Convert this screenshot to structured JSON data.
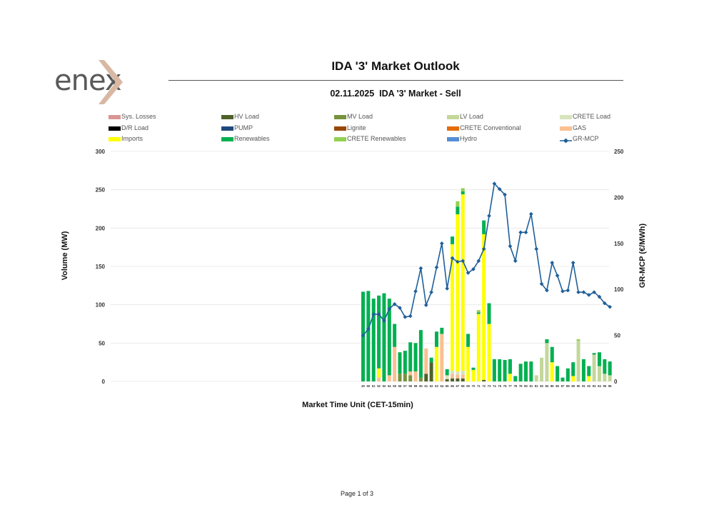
{
  "header": {
    "logo_text": "enex",
    "title": "IDA '3' Market Outlook",
    "subtitle": "02.11.2025  IDA '3' Market - Sell"
  },
  "legend": [
    {
      "label": "Sys. Losses",
      "color": "#d99694"
    },
    {
      "label": "HV Load",
      "color": "#4f6228"
    },
    {
      "label": "MV Load",
      "color": "#77933c"
    },
    {
      "label": "LV Load",
      "color": "#c4d79b"
    },
    {
      "label": "CRETE Load",
      "color": "#d8e4bc"
    },
    {
      "label": "D/R Load",
      "color": "#000000"
    },
    {
      "label": "PUMP",
      "color": "#1f497d"
    },
    {
      "label": "Lignite",
      "color": "#974706"
    },
    {
      "label": "CRETE Conventional",
      "color": "#e46c0a"
    },
    {
      "label": "GAS",
      "color": "#fac090"
    },
    {
      "label": "Imports",
      "color": "#ffff00"
    },
    {
      "label": "Renewables",
      "color": "#00b050"
    },
    {
      "label": "CRETE Renewables",
      "color": "#92d050"
    },
    {
      "label": "Hydro",
      "color": "#558ed5"
    },
    {
      "label": "GR-MCP",
      "color": "#1f5f99"
    }
  ],
  "footer": {
    "page": "Page 1 of 3"
  },
  "chart_data": {
    "type": "bar",
    "stacked": true,
    "title": "02.11.2025  IDA '3' Market - Sell",
    "xlabel": "Market Time Unit (CET-15min)",
    "ylabel": "Volume (MW)",
    "y2label": "GR-MCP (€/MWh)",
    "ylim": [
      0,
      300
    ],
    "yticks": [
      0,
      50,
      100,
      150,
      200,
      250,
      300
    ],
    "y2lim": [
      0,
      250
    ],
    "y2ticks": [
      0,
      50,
      100,
      150,
      200,
      250
    ],
    "grid": true,
    "legend_position": "top",
    "categories": [
      "49",
      "50",
      "51",
      "52",
      "53",
      "54",
      "55",
      "56",
      "57",
      "58",
      "59",
      "60",
      "61",
      "62",
      "63",
      "64",
      "65",
      "66",
      "67",
      "68",
      "69",
      "70",
      "71",
      "72",
      "73",
      "74",
      "75",
      "76",
      "77",
      "78",
      "79",
      "80",
      "81",
      "82",
      "83",
      "84",
      "85",
      "86",
      "87",
      "88",
      "89",
      "90",
      "91",
      "92",
      "93",
      "94",
      "95",
      "96"
    ],
    "series": [
      {
        "name": "LV Load",
        "color": "#c4d79b",
        "values": [
          0,
          0,
          0,
          0,
          0,
          0,
          0,
          0,
          0,
          0,
          0,
          0,
          0,
          0,
          0,
          0,
          0,
          0,
          0,
          0,
          0,
          0,
          0,
          0,
          0,
          0,
          0,
          0,
          0,
          0,
          0,
          0,
          0,
          8,
          31,
          50,
          0,
          0,
          0,
          0,
          0,
          53,
          0,
          0,
          35,
          20,
          10,
          8
        ]
      },
      {
        "name": "HV Load",
        "color": "#4f6228",
        "values": [
          0,
          0,
          0,
          0,
          0,
          0,
          0,
          0,
          0,
          0,
          0,
          0,
          10,
          25,
          0,
          0,
          3,
          4,
          4,
          4,
          0,
          0,
          0,
          2,
          0,
          0,
          0,
          0,
          0,
          0,
          0,
          0,
          0,
          0,
          0,
          0,
          0,
          0,
          0,
          0,
          0,
          0,
          0,
          0,
          0,
          0,
          0,
          0
        ]
      },
      {
        "name": "MV Load",
        "color": "#77933c",
        "values": [
          0,
          0,
          0,
          0,
          0,
          0,
          0,
          10,
          10,
          8,
          0,
          5,
          0,
          0,
          0,
          0,
          0,
          0,
          0,
          0,
          0,
          0,
          0,
          0,
          0,
          0,
          0,
          0,
          0,
          0,
          0,
          0,
          0,
          0,
          0,
          0,
          0,
          0,
          0,
          0,
          0,
          0,
          0,
          0,
          0,
          0,
          0,
          0
        ]
      },
      {
        "name": "GAS",
        "color": "#fac090",
        "values": [
          0,
          0,
          0,
          5,
          0,
          8,
          45,
          0,
          0,
          5,
          13,
          0,
          33,
          0,
          0,
          62,
          0,
          6,
          5,
          5,
          0,
          0,
          0,
          0,
          0,
          0,
          0,
          0,
          0,
          0,
          0,
          0,
          0,
          0,
          0,
          0,
          0,
          0,
          0,
          0,
          0,
          0,
          0,
          0,
          0,
          0,
          0,
          0
        ]
      },
      {
        "name": "CRETE Load",
        "color": "#d8e4bc",
        "values": [
          0,
          0,
          0,
          0,
          0,
          0,
          0,
          0,
          0,
          0,
          0,
          0,
          0,
          0,
          0,
          0,
          5,
          4,
          4,
          5,
          0,
          0,
          0,
          0,
          0,
          0,
          0,
          0,
          0,
          0,
          0,
          0,
          0,
          0,
          0,
          0,
          0,
          0,
          0,
          0,
          0,
          0,
          0,
          0,
          0,
          0,
          0,
          0
        ]
      },
      {
        "name": "Imports",
        "color": "#ffff00",
        "values": [
          0,
          0,
          0,
          12,
          0,
          0,
          0,
          0,
          0,
          0,
          0,
          0,
          0,
          0,
          45,
          0,
          0,
          165,
          205,
          230,
          45,
          15,
          88,
          190,
          75,
          0,
          0,
          0,
          10,
          0,
          0,
          0,
          0,
          0,
          0,
          0,
          25,
          0,
          0,
          0,
          7,
          0,
          0,
          7,
          0,
          0,
          0,
          0
        ]
      },
      {
        "name": "Renewables",
        "color": "#00b050",
        "values": [
          117,
          118,
          108,
          95,
          115,
          100,
          30,
          28,
          30,
          38,
          37,
          62,
          0,
          6,
          20,
          8,
          8,
          10,
          10,
          4,
          17,
          3,
          2,
          18,
          27,
          29,
          29,
          28,
          19,
          7,
          23,
          26,
          26,
          0,
          0,
          5,
          20,
          20,
          5,
          17,
          18,
          0,
          29,
          13,
          2,
          18,
          19,
          18
        ]
      },
      {
        "name": "CRETE Renewables",
        "color": "#92d050",
        "values": [
          0,
          0,
          0,
          0,
          0,
          0,
          0,
          0,
          0,
          0,
          0,
          0,
          0,
          0,
          0,
          0,
          0,
          0,
          7,
          4,
          0,
          0,
          3,
          0,
          0,
          0,
          0,
          0,
          0,
          0,
          0,
          0,
          0,
          0,
          0,
          0,
          0,
          0,
          0,
          0,
          0,
          2,
          0,
          0,
          0,
          0,
          0,
          0
        ]
      },
      {
        "name": "GR-MCP",
        "type": "line",
        "axis": "secondary",
        "color": "#1f5f99",
        "values": [
          50,
          57,
          73,
          73,
          66,
          79,
          84,
          80,
          70,
          71,
          98,
          123,
          83,
          97,
          124,
          150,
          101,
          134,
          130,
          131,
          118,
          122,
          131,
          144,
          180,
          215,
          209,
          203,
          147,
          131,
          162,
          162,
          182,
          144,
          106,
          99,
          129,
          115,
          98,
          99,
          129,
          97,
          97,
          94,
          97,
          92,
          85,
          81
        ]
      }
    ]
  }
}
